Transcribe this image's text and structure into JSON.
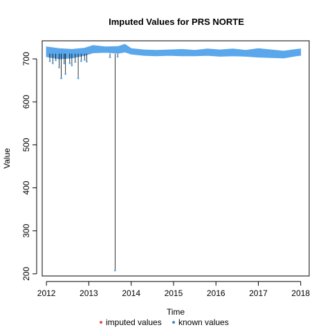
{
  "chart_data": {
    "type": "line",
    "title": "Imputed Values for  PRS NORTE",
    "xlabel": "Time",
    "ylabel": "Value",
    "xlim": [
      2011.9,
      2018.2
    ],
    "ylim": [
      195,
      742
    ],
    "x_ticks": [
      2012,
      2013,
      2014,
      2015,
      2016,
      2017,
      2018
    ],
    "y_ticks": [
      200,
      300,
      400,
      500,
      600,
      700
    ],
    "legend": {
      "position": "bottom",
      "items": [
        {
          "label": "imputed values",
          "color": "#ef4a4a",
          "marker": "dot"
        },
        {
          "label": "known values",
          "color": "#4a7fc4",
          "marker": "dot"
        }
      ]
    },
    "series": [
      {
        "name": "known values",
        "color": "#5aa7ec",
        "band_upper": [
          [
            2012.0,
            728
          ],
          [
            2012.3,
            724
          ],
          [
            2012.6,
            722
          ],
          [
            2012.9,
            725
          ],
          [
            2013.1,
            731
          ],
          [
            2013.4,
            728
          ],
          [
            2013.7,
            729
          ],
          [
            2013.85,
            734
          ],
          [
            2014.0,
            724
          ],
          [
            2014.3,
            721
          ],
          [
            2014.6,
            720
          ],
          [
            2014.9,
            721
          ],
          [
            2015.2,
            722
          ],
          [
            2015.5,
            720
          ],
          [
            2015.8,
            723
          ],
          [
            2016.1,
            721
          ],
          [
            2016.4,
            723
          ],
          [
            2016.7,
            720
          ],
          [
            2017.0,
            724
          ],
          [
            2017.3,
            721
          ],
          [
            2017.6,
            718
          ],
          [
            2017.9,
            722
          ],
          [
            2018.0,
            723
          ]
        ],
        "band_lower": [
          [
            2012.0,
            705
          ],
          [
            2012.3,
            700
          ],
          [
            2012.6,
            702
          ],
          [
            2012.9,
            708
          ],
          [
            2013.1,
            714
          ],
          [
            2013.4,
            715
          ],
          [
            2013.7,
            713
          ],
          [
            2013.85,
            716
          ],
          [
            2014.0,
            711
          ],
          [
            2014.3,
            708
          ],
          [
            2014.6,
            707
          ],
          [
            2014.9,
            708
          ],
          [
            2015.2,
            707
          ],
          [
            2015.5,
            707
          ],
          [
            2015.8,
            708
          ],
          [
            2016.1,
            706
          ],
          [
            2016.4,
            707
          ],
          [
            2016.7,
            706
          ],
          [
            2017.0,
            704
          ],
          [
            2017.3,
            703
          ],
          [
            2017.6,
            702
          ],
          [
            2017.9,
            707
          ],
          [
            2018.0,
            708
          ]
        ],
        "spikes": [
          {
            "x": 2012.08,
            "y": 695
          },
          {
            "x": 2012.15,
            "y": 690
          },
          {
            "x": 2012.22,
            "y": 697
          },
          {
            "x": 2012.3,
            "y": 680
          },
          {
            "x": 2012.35,
            "y": 655
          },
          {
            "x": 2012.42,
            "y": 690
          },
          {
            "x": 2012.45,
            "y": 665
          },
          {
            "x": 2012.55,
            "y": 690
          },
          {
            "x": 2012.6,
            "y": 685
          },
          {
            "x": 2012.68,
            "y": 693
          },
          {
            "x": 2012.75,
            "y": 655
          },
          {
            "x": 2012.82,
            "y": 695
          },
          {
            "x": 2012.9,
            "y": 698
          },
          {
            "x": 2012.95,
            "y": 694
          },
          {
            "x": 2013.5,
            "y": 704
          },
          {
            "x": 2013.62,
            "y": 208
          },
          {
            "x": 2013.68,
            "y": 705
          }
        ]
      },
      {
        "name": "imputed values",
        "color": "#ef4a4a",
        "points": []
      }
    ]
  }
}
